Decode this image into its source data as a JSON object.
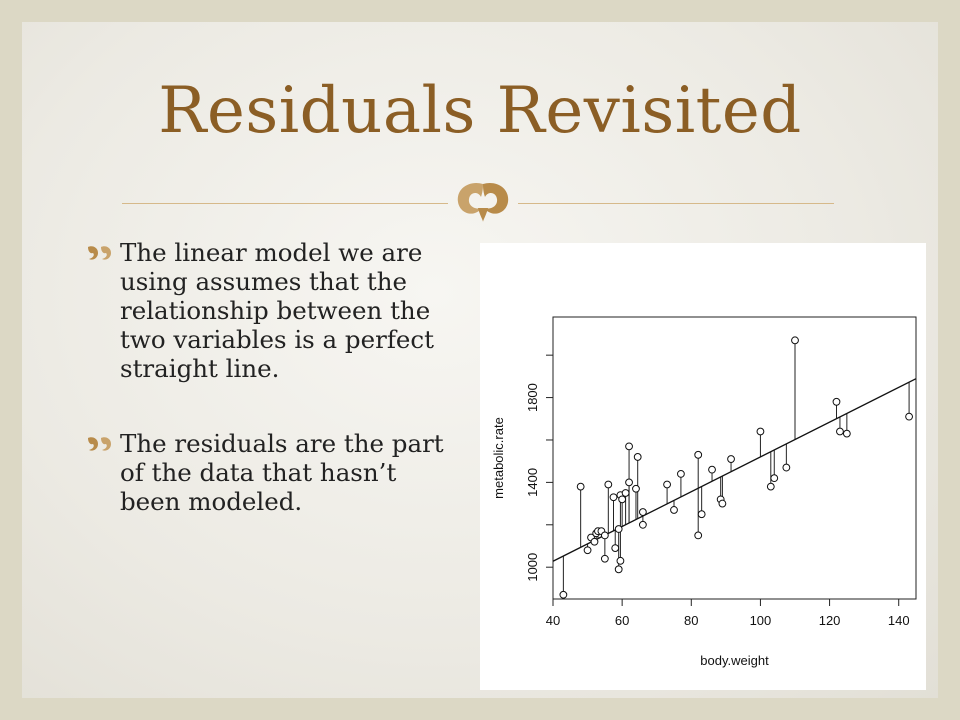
{
  "slide": {
    "title": "Residuals Revisited",
    "accent_color": "#8b5e25",
    "bullets": [
      "The linear model we are using assumes that the relationship between the two variables is a perfect straight line.",
      "The residuals are the part of the data that hasn’t been modeled."
    ],
    "ornament_icon": "fleuron-icon",
    "bullet_icon": "double-quote-bullet-icon"
  },
  "chart_data": {
    "type": "scatter",
    "xlabel": "body.weight",
    "ylabel": "metabolic.rate",
    "xlim": [
      40,
      145
    ],
    "ylim": [
      850,
      2180
    ],
    "x_ticks": [
      40,
      60,
      80,
      100,
      120,
      140
    ],
    "y_ticks": [
      1000,
      1400,
      1800
    ],
    "grid": false,
    "residual_segments": true,
    "fit_line": {
      "intercept": 700,
      "slope": 8.2
    },
    "points": [
      {
        "x": 43,
        "y": 870
      },
      {
        "x": 48,
        "y": 1380
      },
      {
        "x": 50,
        "y": 1080
      },
      {
        "x": 51,
        "y": 1140
      },
      {
        "x": 52,
        "y": 1120
      },
      {
        "x": 52.5,
        "y": 1160
      },
      {
        "x": 53,
        "y": 1170
      },
      {
        "x": 54,
        "y": 1170
      },
      {
        "x": 55,
        "y": 1040
      },
      {
        "x": 55,
        "y": 1150
      },
      {
        "x": 56,
        "y": 1390
      },
      {
        "x": 57.5,
        "y": 1330
      },
      {
        "x": 58,
        "y": 1090
      },
      {
        "x": 59,
        "y": 990
      },
      {
        "x": 59,
        "y": 1180
      },
      {
        "x": 59.5,
        "y": 1030
      },
      {
        "x": 59.5,
        "y": 1340
      },
      {
        "x": 60,
        "y": 1320
      },
      {
        "x": 61,
        "y": 1350
      },
      {
        "x": 62,
        "y": 1400
      },
      {
        "x": 62,
        "y": 1570
      },
      {
        "x": 64,
        "y": 1370
      },
      {
        "x": 64.5,
        "y": 1520
      },
      {
        "x": 66,
        "y": 1200
      },
      {
        "x": 66,
        "y": 1260
      },
      {
        "x": 73,
        "y": 1390
      },
      {
        "x": 75,
        "y": 1270
      },
      {
        "x": 77,
        "y": 1440
      },
      {
        "x": 82,
        "y": 1150
      },
      {
        "x": 82,
        "y": 1530
      },
      {
        "x": 83,
        "y": 1250
      },
      {
        "x": 86,
        "y": 1460
      },
      {
        "x": 88.5,
        "y": 1320
      },
      {
        "x": 89,
        "y": 1300
      },
      {
        "x": 91.5,
        "y": 1510
      },
      {
        "x": 100,
        "y": 1640
      },
      {
        "x": 103,
        "y": 1380
      },
      {
        "x": 104,
        "y": 1420
      },
      {
        "x": 107.5,
        "y": 1470
      },
      {
        "x": 110,
        "y": 2070
      },
      {
        "x": 122,
        "y": 1780
      },
      {
        "x": 123,
        "y": 1640
      },
      {
        "x": 125,
        "y": 1630
      },
      {
        "x": 143,
        "y": 1710
      }
    ]
  }
}
